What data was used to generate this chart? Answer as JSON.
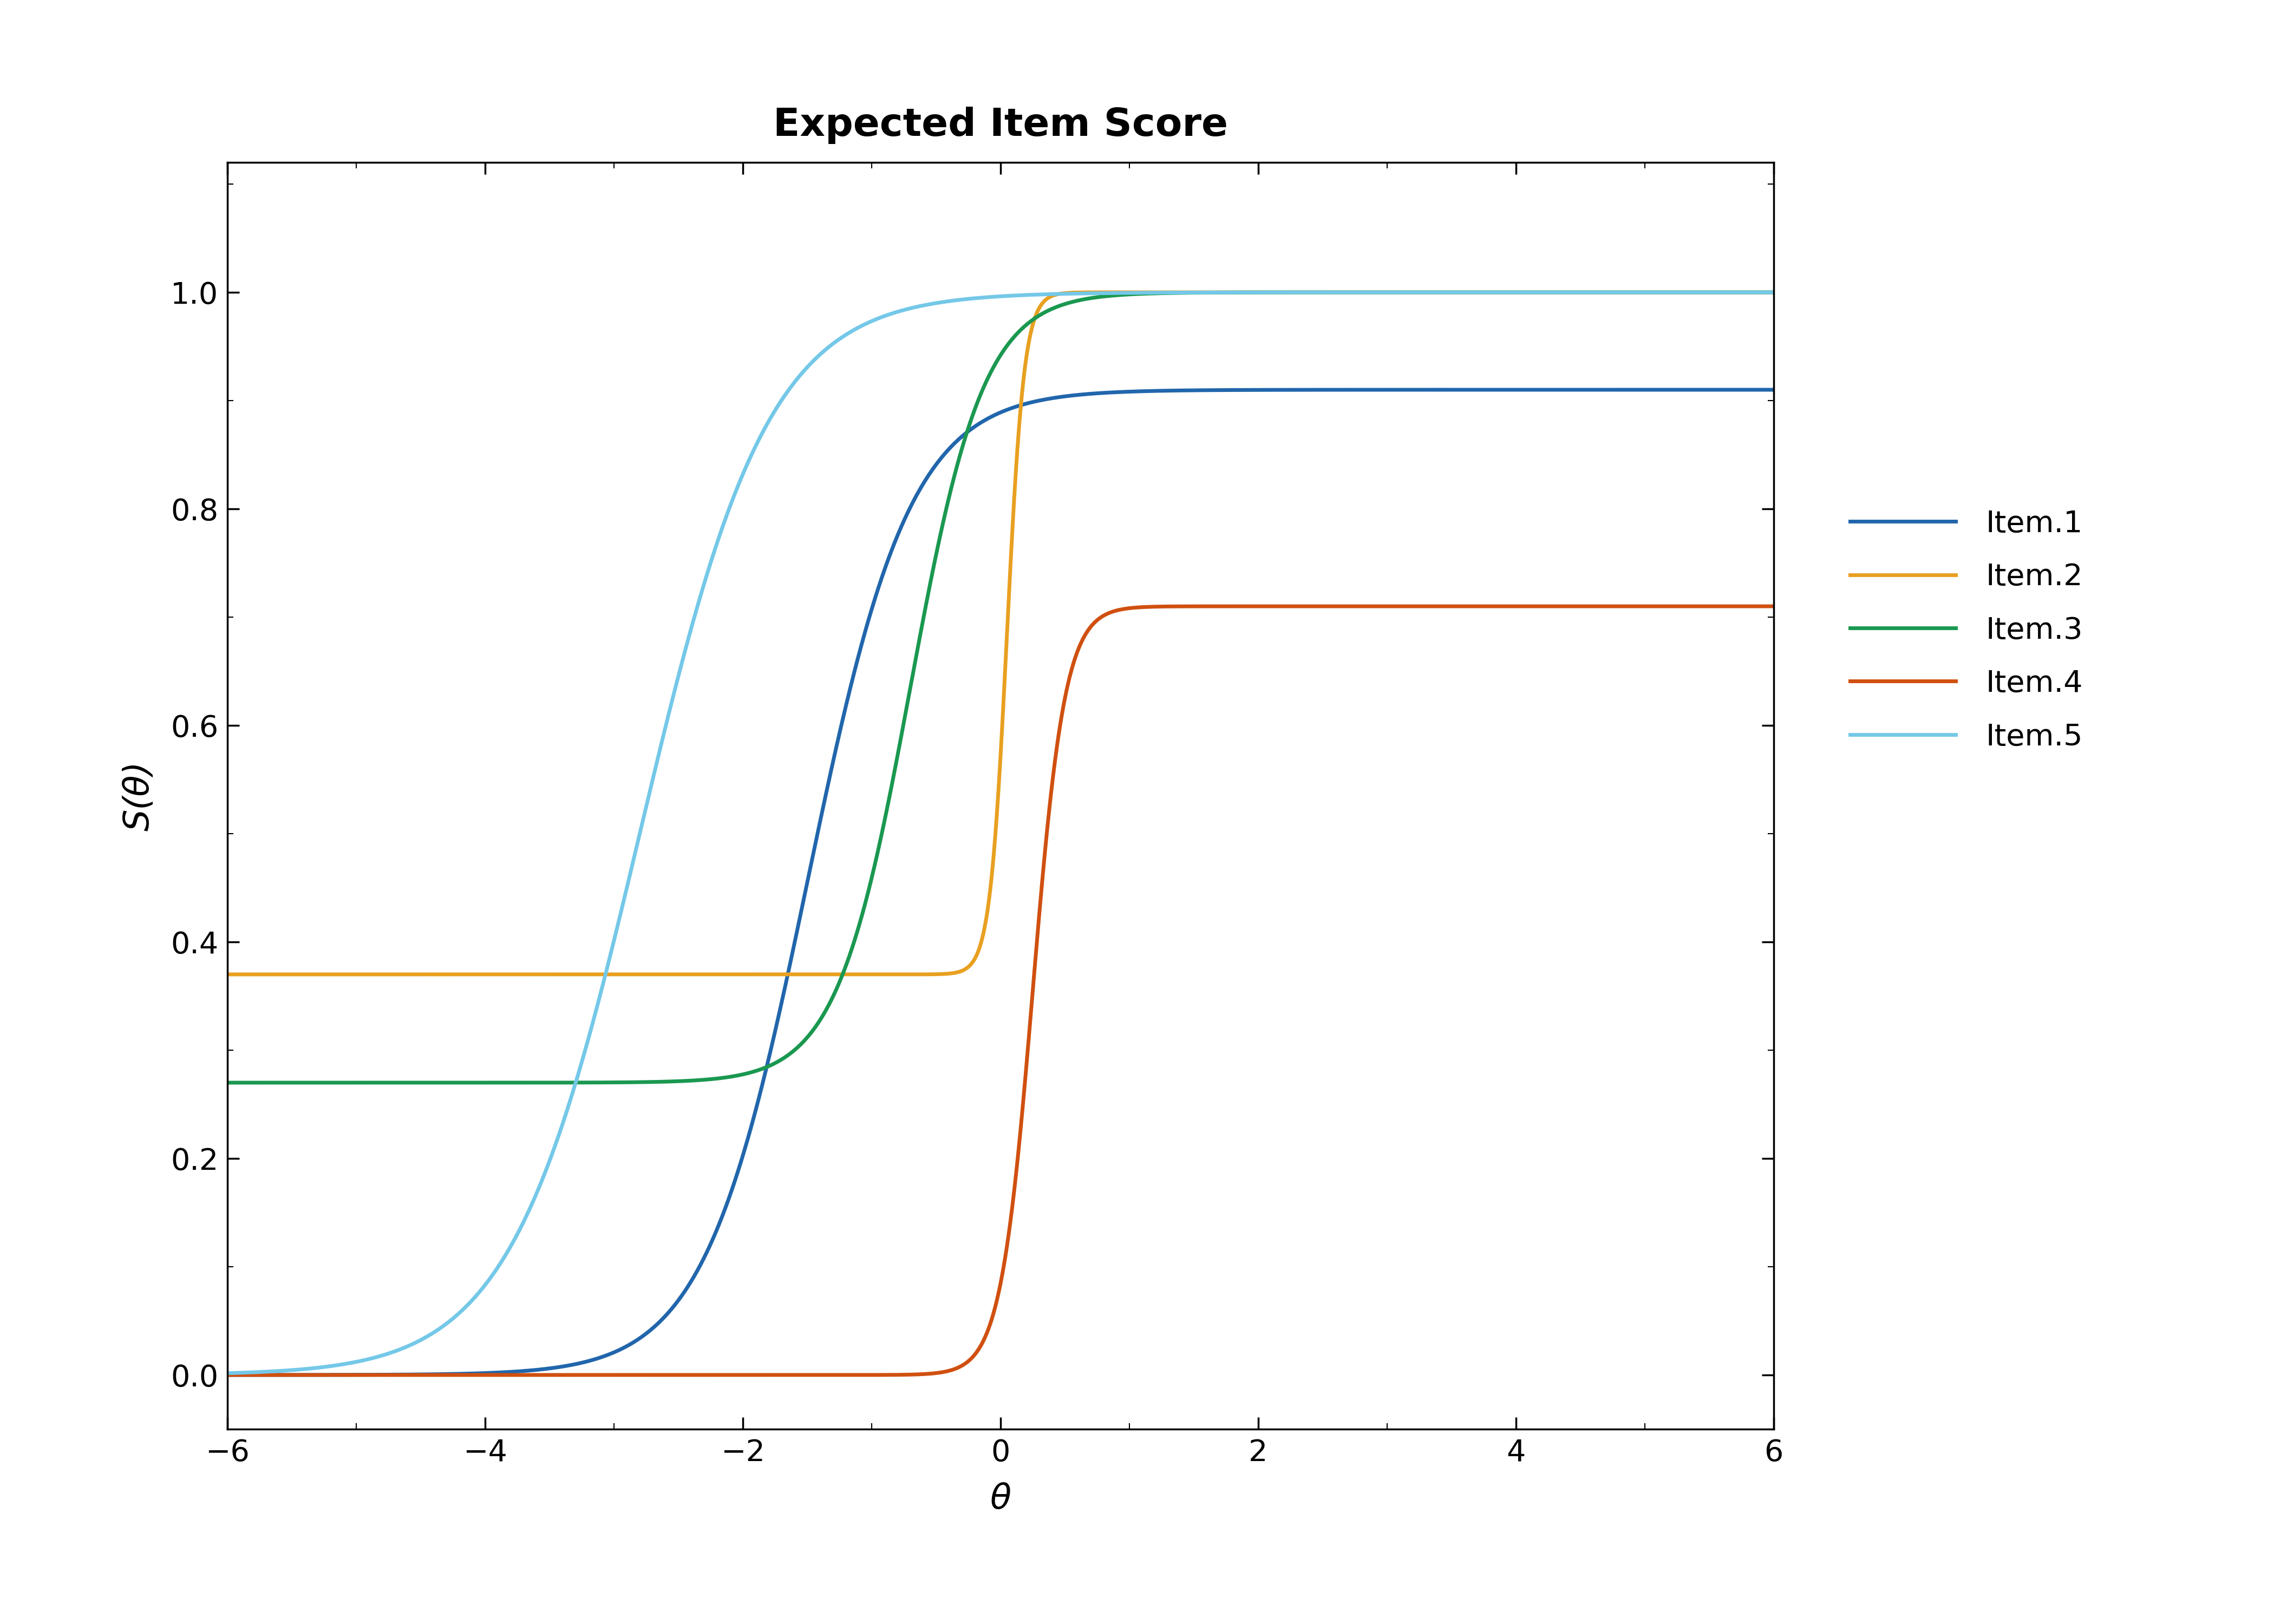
{
  "title": "Expected Item Score",
  "xlabel": "θ",
  "ylabel": "S(θ)",
  "xlim": [
    -6,
    6
  ],
  "ylim": [
    -0.05,
    1.12
  ],
  "xticks": [
    -6,
    -4,
    -2,
    0,
    2,
    4,
    6
  ],
  "yticks": [
    0.0,
    0.2,
    0.4,
    0.6,
    0.8,
    1.0
  ],
  "items": [
    {
      "label": "Item.1",
      "color": "#2166AC",
      "a": 2.5,
      "b": -1.5,
      "c": 0.0,
      "d": 0.91
    },
    {
      "label": "Item.2",
      "color": "#E8A020",
      "a": 15.0,
      "b": 0.05,
      "c": 0.37,
      "d": 1.0
    },
    {
      "label": "Item.3",
      "color": "#1A9850",
      "a": 3.5,
      "b": -0.7,
      "c": 0.27,
      "d": 1.0
    },
    {
      "label": "Item.4",
      "color": "#D05010",
      "a": 8.0,
      "b": 0.25,
      "c": 0.0,
      "d": 0.71
    },
    {
      "label": "Item.5",
      "color": "#74C8E8",
      "a": 2.0,
      "b": -2.8,
      "c": 0.0,
      "d": 1.0
    }
  ],
  "background_color": "#FFFFFF",
  "title_fontsize": 52,
  "axis_label_fontsize": 46,
  "tick_fontsize": 40,
  "legend_fontsize": 40,
  "line_width": 5.0
}
